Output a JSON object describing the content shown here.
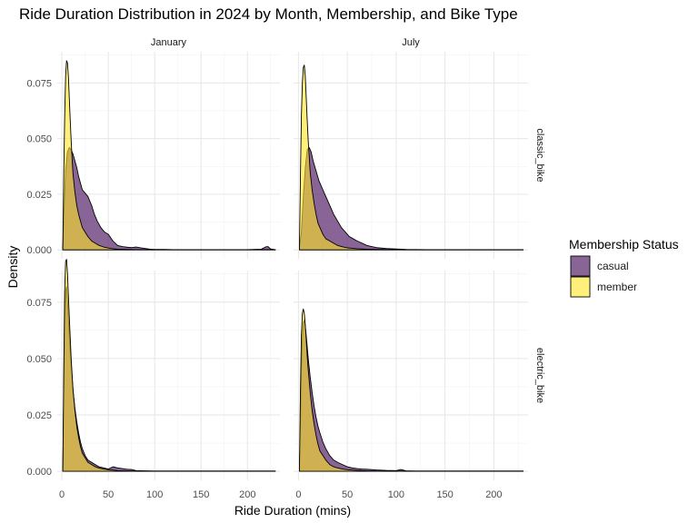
{
  "chart_data": {
    "type": "area",
    "title": "Ride Duration Distribution in 2024 by Month, Membership, and Bike Type",
    "xlabel": "Ride Duration (mins)",
    "ylabel": "Density",
    "xlim": [
      -5,
      235
    ],
    "ylim": [
      -0.004,
      0.089
    ],
    "x_ticks": [
      0,
      50,
      100,
      150,
      200
    ],
    "x_tick_labels": [
      "0",
      "50",
      "100",
      "150",
      "200"
    ],
    "y_ticks": [
      0,
      0.025,
      0.05,
      0.075
    ],
    "y_tick_labels": [
      "0.000",
      "0.025",
      "0.050",
      "0.075"
    ],
    "grid": true,
    "columns": [
      "January",
      "July"
    ],
    "rows": [
      "classic_bike",
      "electric_bike"
    ],
    "legend": {
      "title": "Membership Status",
      "position": "right",
      "entries": [
        {
          "label": "casual",
          "color": "#5a2a6e"
        },
        {
          "label": "member",
          "color": "#ffe523"
        }
      ]
    },
    "panels": [
      {
        "column": "January",
        "row": "classic_bike",
        "xmax": 230,
        "series": [
          {
            "name": "casual",
            "x": [
              1,
              2,
              4,
              6,
              8,
              10,
              12,
              14,
              16,
              18,
              20,
              22,
              24,
              26,
              28,
              30,
              32,
              35,
              38,
              42,
              46,
              50,
              55,
              60,
              65,
              70,
              75,
              80,
              85,
              90,
              95,
              100,
              110,
              120,
              140,
              160,
              180,
              200,
              215,
              220,
              222,
              225,
              230
            ],
            "y": [
              0.001,
              0.015,
              0.036,
              0.044,
              0.046,
              0.045,
              0.043,
              0.04,
              0.037,
              0.033,
              0.03,
              0.027,
              0.026,
              0.025,
              0.024,
              0.022,
              0.02,
              0.016,
              0.013,
              0.01,
              0.008,
              0.007,
              0.004,
              0.002,
              0.0015,
              0.0012,
              0.001,
              0.0013,
              0.0009,
              0.0006,
              0.0003,
              0.0002,
              0.0002,
              0.0001,
              0.0001,
              0.0001,
              0.0001,
              0.0001,
              0.0003,
              0.0014,
              0.0015,
              0.0004,
              0.0001
            ]
          },
          {
            "name": "member",
            "x": [
              1,
              2,
              3,
              4,
              5,
              6,
              7,
              8,
              9,
              10,
              11,
              12,
              14,
              16,
              18,
              20,
              22,
              25,
              28,
              32,
              36,
              40,
              45,
              50,
              55,
              60,
              70,
              80,
              100,
              120,
              150,
              200,
              230
            ],
            "y": [
              0.001,
              0.034,
              0.06,
              0.078,
              0.085,
              0.084,
              0.078,
              0.068,
              0.058,
              0.049,
              0.041,
              0.034,
              0.026,
              0.02,
              0.016,
              0.013,
              0.01,
              0.008,
              0.006,
              0.004,
              0.003,
              0.002,
              0.0013,
              0.0008,
              0.0005,
              0.0003,
              0.0002,
              0.0001,
              0.0001,
              0.0001,
              0.0001,
              0.0001,
              0.0001
            ]
          }
        ]
      },
      {
        "column": "July",
        "row": "classic_bike",
        "xmax": 230,
        "series": [
          {
            "name": "casual",
            "x": [
              1,
              3,
              5,
              7,
              9,
              11,
              13,
              15,
              17,
              19,
              21,
              23,
              25,
              27,
              29,
              31,
              33,
              36,
              40,
              44,
              48,
              52,
              56,
              60,
              65,
              70,
              75,
              80,
              90,
              100,
              110,
              130,
              160,
              200,
              230
            ],
            "y": [
              0.001,
              0.008,
              0.024,
              0.037,
              0.045,
              0.046,
              0.044,
              0.04,
              0.037,
              0.034,
              0.031,
              0.029,
              0.027,
              0.025,
              0.023,
              0.021,
              0.019,
              0.016,
              0.013,
              0.01,
              0.008,
              0.006,
              0.005,
              0.004,
              0.003,
              0.002,
              0.0015,
              0.001,
              0.0006,
              0.0004,
              0.0002,
              0.0001,
              0.0001,
              0.0001,
              0.0001
            ]
          },
          {
            "name": "member",
            "x": [
              1,
              2,
              3,
              4,
              5,
              6,
              7,
              8,
              9,
              10,
              11,
              12,
              14,
              16,
              18,
              20,
              22,
              25,
              28,
              32,
              36,
              40,
              45,
              50,
              60,
              70,
              80,
              100,
              130,
              170,
              230
            ],
            "y": [
              0.001,
              0.032,
              0.06,
              0.075,
              0.082,
              0.083,
              0.078,
              0.068,
              0.058,
              0.049,
              0.042,
              0.035,
              0.027,
              0.021,
              0.016,
              0.012,
              0.01,
              0.007,
              0.005,
              0.004,
              0.003,
              0.002,
              0.0014,
              0.0009,
              0.0005,
              0.0003,
              0.0002,
              0.0001,
              0.0001,
              0.0001,
              0.0001
            ]
          }
        ]
      },
      {
        "column": "January",
        "row": "electric_bike",
        "xmax": 230,
        "series": [
          {
            "name": "casual",
            "x": [
              1,
              2,
              3,
              4,
              5,
              6,
              7,
              8,
              10,
              12,
              14,
              16,
              18,
              20,
              22,
              25,
              28,
              32,
              36,
              40,
              45,
              50,
              55,
              60,
              65,
              70,
              75,
              80,
              90,
              100,
              120,
              150,
              200,
              230
            ],
            "y": [
              0.001,
              0.035,
              0.065,
              0.08,
              0.082,
              0.076,
              0.068,
              0.06,
              0.047,
              0.036,
              0.028,
              0.022,
              0.017,
              0.013,
              0.01,
              0.007,
              0.005,
              0.004,
              0.003,
              0.002,
              0.0015,
              0.001,
              0.002,
              0.0015,
              0.0012,
              0.0009,
              0.0008,
              0.0003,
              0.0002,
              0.0001,
              0.0001,
              0.0001,
              0.0001,
              0.0001
            ]
          },
          {
            "name": "member",
            "x": [
              1,
              2,
              3,
              4,
              5,
              6,
              7,
              8,
              9,
              10,
              12,
              14,
              16,
              18,
              20,
              22,
              25,
              28,
              32,
              36,
              40,
              45,
              50,
              55,
              60,
              70,
              80,
              100,
              150,
              200,
              230
            ],
            "y": [
              0.001,
              0.045,
              0.08,
              0.093,
              0.094,
              0.088,
              0.078,
              0.068,
              0.059,
              0.05,
              0.036,
              0.027,
              0.02,
              0.015,
              0.011,
              0.008,
              0.006,
              0.004,
              0.003,
              0.002,
              0.0014,
              0.001,
              0.0007,
              0.0005,
              0.0003,
              0.0002,
              0.0001,
              0.0001,
              0.0001,
              0.0001,
              0.0001
            ]
          }
        ]
      },
      {
        "column": "July",
        "row": "electric_bike",
        "xmax": 230,
        "series": [
          {
            "name": "casual",
            "x": [
              1,
              2,
              3,
              4,
              5,
              6,
              7,
              8,
              10,
              12,
              14,
              16,
              18,
              20,
              22,
              25,
              28,
              32,
              36,
              40,
              45,
              50,
              55,
              60,
              65,
              70,
              80,
              90,
              100,
              105,
              110,
              120,
              150,
              200,
              230
            ],
            "y": [
              0.001,
              0.02,
              0.045,
              0.06,
              0.066,
              0.067,
              0.064,
              0.06,
              0.05,
              0.042,
              0.035,
              0.029,
              0.024,
              0.02,
              0.017,
              0.013,
              0.01,
              0.007,
              0.005,
              0.004,
              0.003,
              0.002,
              0.0015,
              0.0012,
              0.001,
              0.0009,
              0.0006,
              0.0004,
              0.0003,
              0.0008,
              0.0002,
              0.0001,
              0.0001,
              0.0001,
              0.0001
            ]
          },
          {
            "name": "member",
            "x": [
              1,
              2,
              3,
              4,
              5,
              6,
              7,
              8,
              9,
              10,
              12,
              14,
              16,
              18,
              20,
              22,
              25,
              28,
              32,
              36,
              40,
              45,
              50,
              60,
              70,
              80,
              100,
              150,
              200,
              230
            ],
            "y": [
              0.001,
              0.035,
              0.06,
              0.07,
              0.072,
              0.07,
              0.065,
              0.058,
              0.051,
              0.045,
              0.035,
              0.027,
              0.021,
              0.016,
              0.012,
              0.009,
              0.007,
              0.005,
              0.003,
              0.002,
              0.0015,
              0.001,
              0.0007,
              0.0004,
              0.0002,
              0.0001,
              0.0001,
              0.0001,
              0.0001,
              0.0001
            ]
          }
        ]
      }
    ]
  }
}
